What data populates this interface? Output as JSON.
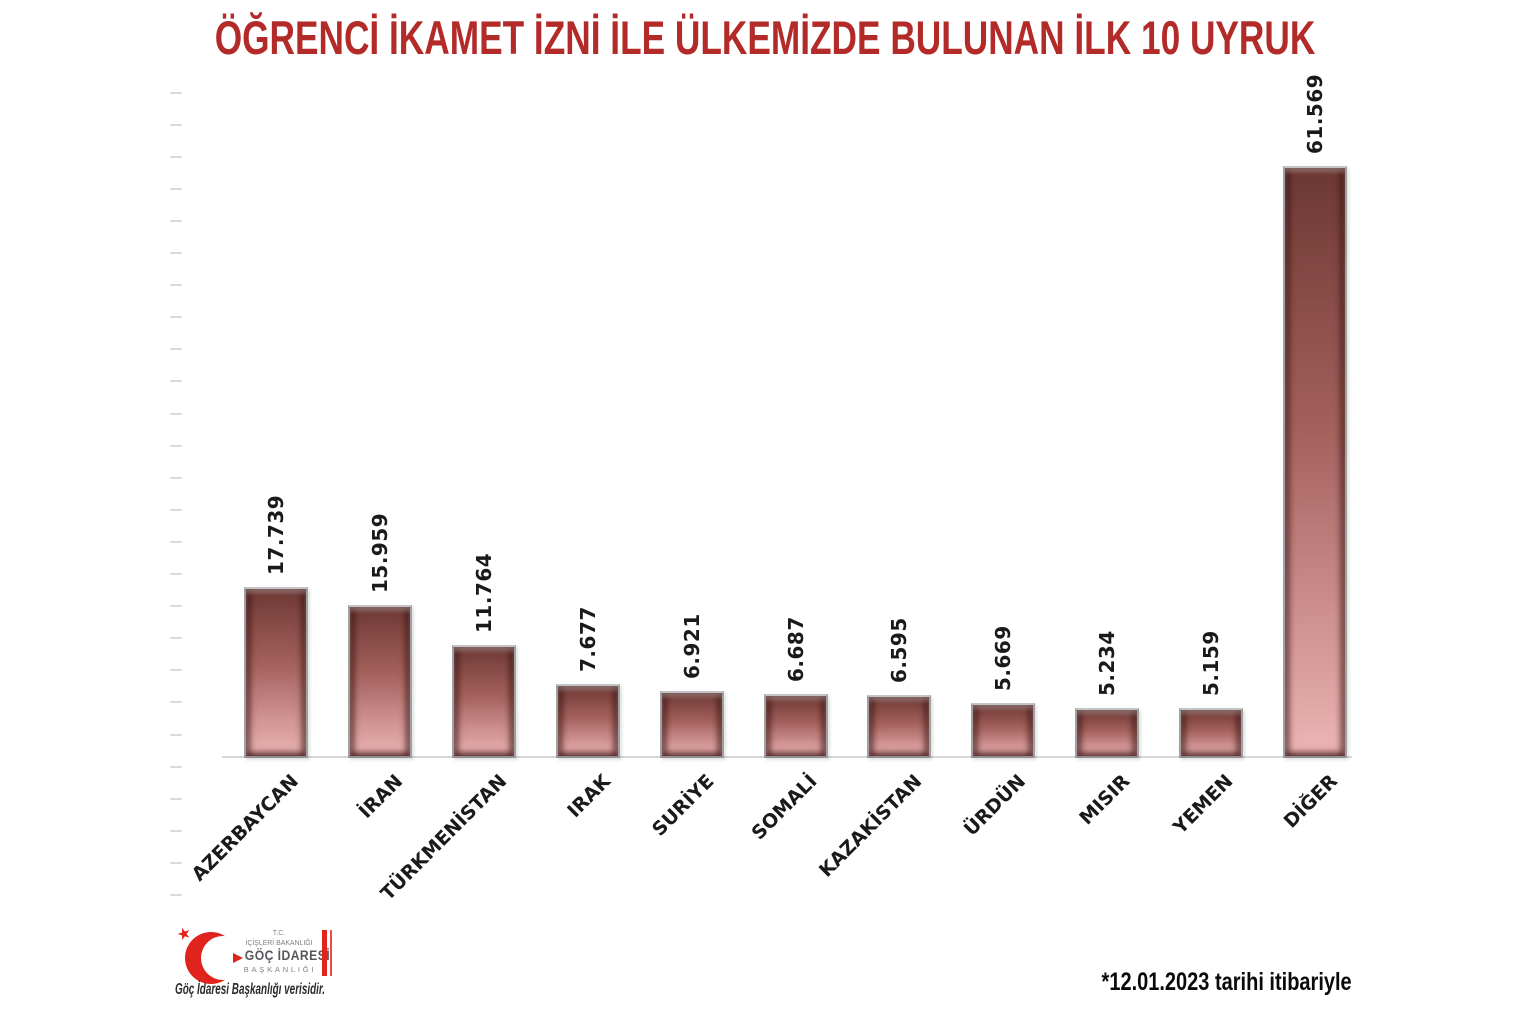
{
  "title": "ÖĞRENCİ İKAMET İZNİ İLE ÜLKEMİZDE BULUNAN İLK 10 UYRUK",
  "chart_data": {
    "type": "bar",
    "title": "ÖĞRENCİ İKAMET İZNİ İLE ÜLKEMİZDE BULUNAN İLK 10 UYRUK",
    "categories": [
      "AZERBAYCAN",
      "İRAN",
      "TÜRKMENİSTAN",
      "IRAK",
      "SURİYE",
      "SOMALİ",
      "KAZAKİSTAN",
      "ÜRDÜN",
      "MISIR",
      "YEMEN",
      "DİĞER"
    ],
    "values": [
      17739,
      15959,
      11764,
      7677,
      6921,
      6687,
      6595,
      5669,
      5234,
      5159,
      61569
    ],
    "value_labels": [
      "17.739",
      "15.959",
      "11.764",
      "7.677",
      "6.921",
      "6.687",
      "6.595",
      "5.669",
      "5.234",
      "5.159",
      "61.569"
    ],
    "xlabel": "",
    "ylabel": "",
    "ylim": [
      0,
      69000
    ],
    "grid": false,
    "legend": false,
    "value_label_rotation_deg": 90,
    "category_label_rotation_deg": 45,
    "bar_color_top": "#6b3733",
    "bar_color_bottom": "#ecb5b3"
  },
  "footer": {
    "source_note": "Göç İdaresi Başkanlığı verisidir.",
    "date_note": "*12.01.2023 tarihi itibariyle",
    "logo": {
      "line1": "T.C.",
      "line2": "İÇİŞLERİ BAKANLIĞI",
      "line3": "GÖÇ İDARESİ",
      "line4": "BAŞKANLIĞI",
      "star_glyph": "★",
      "crescent_icon": "crescent-bird-emblem"
    }
  },
  "colors": {
    "title_red": "#b22b28",
    "logo_red": "#e0231c",
    "axis_gray": "#d9d9d9",
    "text_black": "#1a1a1a"
  }
}
